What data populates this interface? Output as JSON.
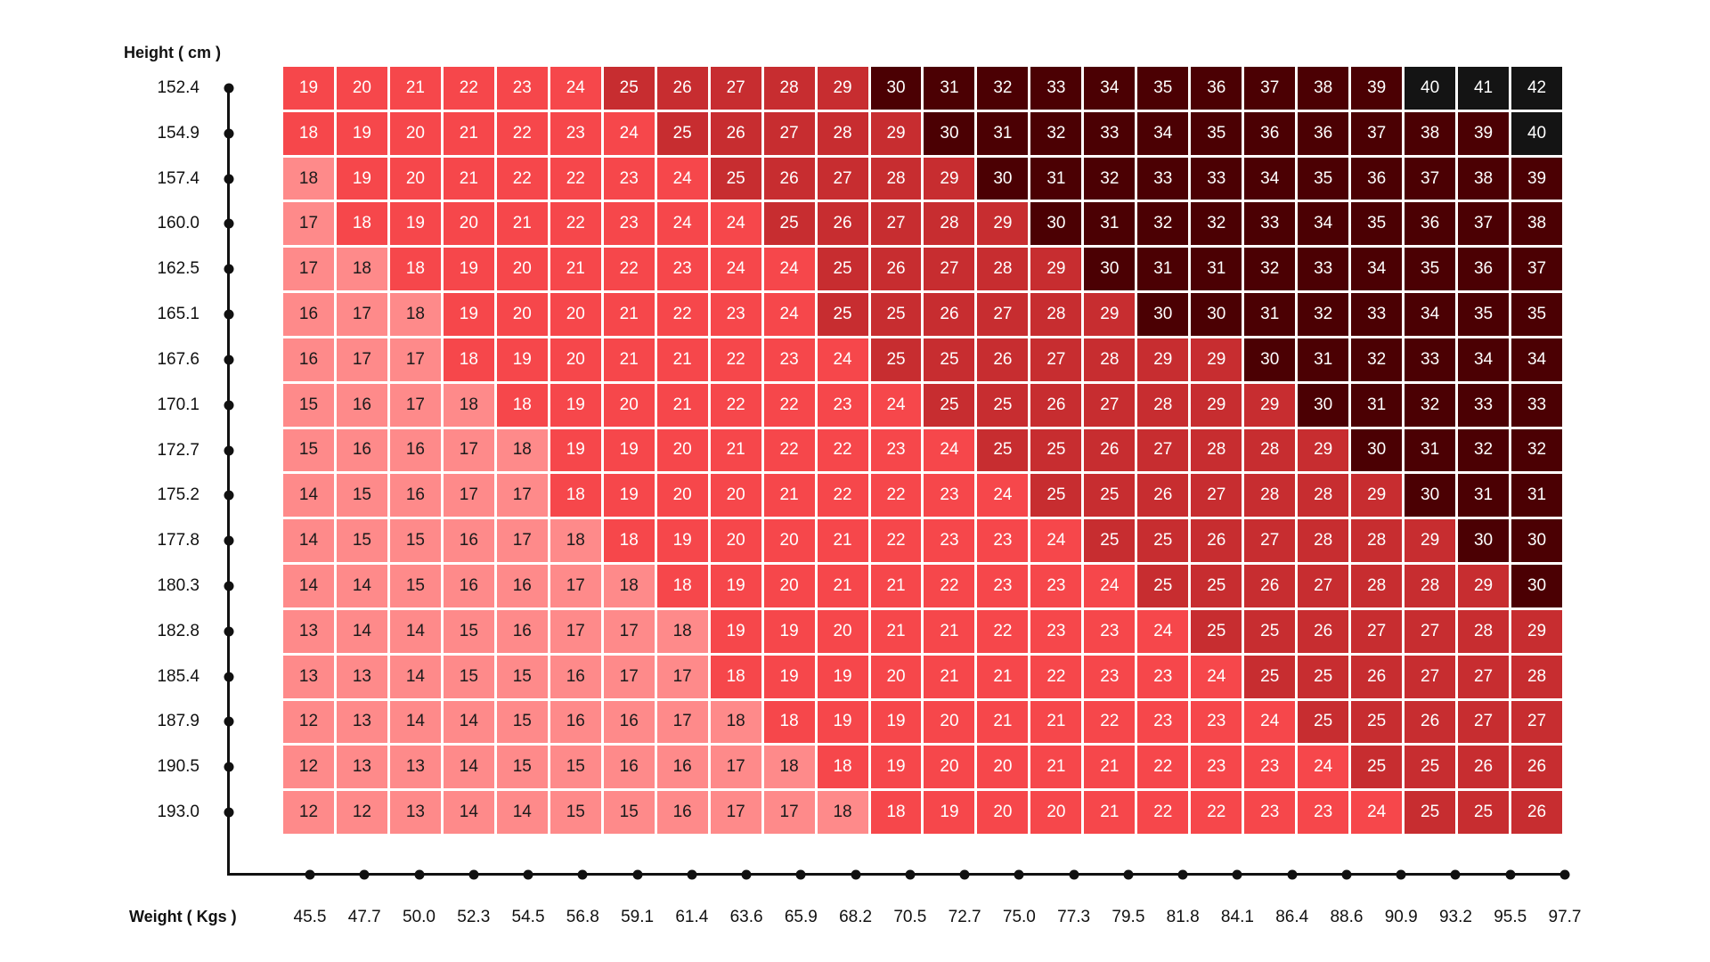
{
  "chart_data": {
    "type": "heatmap",
    "title": "",
    "ylabel": "Height ( cm )",
    "xlabel": "Weight ( Kgs )",
    "y_categories": [
      "152.4",
      "154.9",
      "157.4",
      "160.0",
      "162.5",
      "165.1",
      "167.6",
      "170.1",
      "172.7",
      "175.2",
      "177.8",
      "180.3",
      "182.8",
      "185.4",
      "187.9",
      "190.5",
      "193.0"
    ],
    "x_categories": [
      "45.5",
      "47.7",
      "50.0",
      "52.3",
      "54.5",
      "56.8",
      "59.1",
      "61.4",
      "63.6",
      "65.9",
      "68.2",
      "70.5",
      "72.7",
      "75.0",
      "77.3",
      "79.5",
      "81.8",
      "84.1",
      "86.4",
      "88.6",
      "90.9",
      "93.2",
      "95.5",
      "97.7"
    ],
    "values": [
      [
        19,
        20,
        21,
        22,
        23,
        24,
        25,
        26,
        27,
        28,
        29,
        30,
        31,
        32,
        33,
        34,
        35,
        36,
        37,
        38,
        39,
        40,
        41,
        42
      ],
      [
        18,
        19,
        20,
        21,
        22,
        23,
        24,
        25,
        26,
        27,
        28,
        29,
        30,
        31,
        32,
        33,
        34,
        35,
        36,
        36,
        37,
        38,
        39,
        40
      ],
      [
        18,
        19,
        20,
        21,
        22,
        22,
        23,
        24,
        25,
        26,
        27,
        28,
        29,
        30,
        31,
        32,
        33,
        33,
        34,
        35,
        36,
        37,
        38,
        39
      ],
      [
        17,
        18,
        19,
        20,
        21,
        22,
        23,
        24,
        24,
        25,
        26,
        27,
        28,
        29,
        30,
        31,
        32,
        32,
        33,
        34,
        35,
        36,
        37,
        38
      ],
      [
        17,
        18,
        18,
        19,
        20,
        21,
        22,
        23,
        24,
        24,
        25,
        26,
        27,
        28,
        29,
        30,
        31,
        31,
        32,
        33,
        34,
        35,
        36,
        37
      ],
      [
        16,
        17,
        18,
        19,
        20,
        20,
        21,
        22,
        23,
        24,
        25,
        25,
        26,
        27,
        28,
        29,
        30,
        30,
        31,
        32,
        33,
        34,
        35,
        35
      ],
      [
        16,
        17,
        17,
        18,
        19,
        20,
        21,
        21,
        22,
        23,
        24,
        25,
        25,
        26,
        27,
        28,
        29,
        29,
        30,
        31,
        32,
        33,
        34,
        34
      ],
      [
        15,
        16,
        17,
        18,
        18,
        19,
        20,
        21,
        22,
        22,
        23,
        24,
        25,
        25,
        26,
        27,
        28,
        29,
        29,
        30,
        31,
        32,
        33,
        33
      ],
      [
        15,
        16,
        16,
        17,
        18,
        19,
        19,
        20,
        21,
        22,
        22,
        23,
        24,
        25,
        25,
        26,
        27,
        28,
        28,
        29,
        30,
        31,
        32,
        32
      ],
      [
        14,
        15,
        16,
        17,
        17,
        18,
        19,
        20,
        20,
        21,
        22,
        22,
        23,
        24,
        25,
        25,
        26,
        27,
        28,
        28,
        29,
        30,
        31,
        31
      ],
      [
        14,
        15,
        15,
        16,
        17,
        18,
        18,
        19,
        20,
        20,
        21,
        22,
        23,
        23,
        24,
        25,
        25,
        26,
        27,
        28,
        28,
        29,
        30,
        30
      ],
      [
        14,
        14,
        15,
        16,
        16,
        17,
        18,
        18,
        19,
        20,
        21,
        21,
        22,
        23,
        23,
        24,
        25,
        25,
        26,
        27,
        28,
        28,
        29,
        30
      ],
      [
        13,
        14,
        14,
        15,
        16,
        17,
        17,
        18,
        19,
        19,
        20,
        21,
        21,
        22,
        23,
        23,
        24,
        25,
        25,
        26,
        27,
        27,
        28,
        29
      ],
      [
        13,
        13,
        14,
        15,
        15,
        16,
        17,
        17,
        18,
        19,
        19,
        20,
        21,
        21,
        22,
        23,
        23,
        24,
        25,
        25,
        26,
        27,
        27,
        28
      ],
      [
        12,
        13,
        14,
        14,
        15,
        16,
        16,
        17,
        18,
        18,
        19,
        19,
        20,
        21,
        21,
        22,
        23,
        23,
        24,
        25,
        25,
        26,
        27,
        27
      ],
      [
        12,
        13,
        13,
        14,
        15,
        15,
        16,
        16,
        17,
        18,
        18,
        19,
        20,
        20,
        21,
        21,
        22,
        23,
        23,
        24,
        25,
        25,
        26,
        26
      ],
      [
        12,
        12,
        13,
        14,
        14,
        15,
        15,
        16,
        17,
        17,
        18,
        18,
        19,
        20,
        20,
        21,
        22,
        22,
        23,
        23,
        24,
        25,
        25,
        26
      ]
    ],
    "categories_per_cell": [
      "RRRRRRDDDDDMMMMMMMMMMBBB",
      "RRRRRRRDDDDDMMMMMMMMMMMB",
      "PRRRRRRRDDDDDMMMMMMMMMMM",
      "PRRRRRRRRDDDDDMMMMMMMMMM",
      "PPRRRRRRRRDDDDDMMMMMMMMM",
      "PPPRRRRRRRDDDDDDMMMMMMMM",
      "PPPRRRRRRRRDDDDDDDMMMMMM",
      "PPPPRRRRRRRRDDDDDDDMMMMM",
      "PPPPPRRRRRRRRDDDDDDDMMMM",
      "PPPPPRRRRRRRRRDDDDDDDMMM",
      "PPPPPPRRRRRRRRRDDDDDDDMM",
      "PPPPPPPRRRRRRRRRDDDDDDDM",
      "PPPPPPPPRRRRRRRRRDDDDDDD",
      "PPPPPPPPRRRRRRRRRRDDDDDD",
      "PPPPPPPPPRRRRRRRRRRDDDDD",
      "PPPPPPPPPPRRRRRRRRRRDDDD",
      "PPPPPPPPPPPRRRRRRRRRRDDD"
    ],
    "legend": {
      "P": {
        "range": "< 18.5",
        "color": "#fe8a8a"
      },
      "R": {
        "range": "18.5 – 24.9",
        "color": "#f6474b"
      },
      "D": {
        "range": "25 – 29.9",
        "color": "#c72d30"
      },
      "M": {
        "range": "30 – 39.9",
        "color": "#4b0003"
      },
      "B": {
        "range": "≥ 40",
        "color": "#141414"
      }
    },
    "grid": false
  }
}
